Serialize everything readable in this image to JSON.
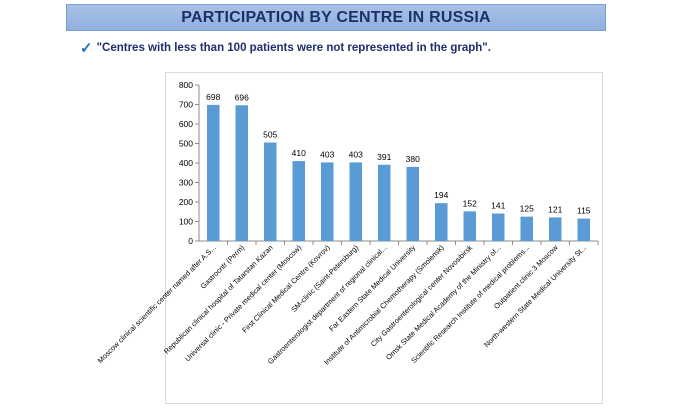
{
  "page": {
    "title": "PARTICIPATION BY CENTRE IN RUSSIA",
    "note": "\"Centres with less than 100 patients were not represented in the graph\".",
    "check_icon": "checkmark-icon"
  },
  "colors": {
    "bar": "#5b9bd5",
    "title_text": "#1f2f6b",
    "title_bg": "#9ab7e1"
  },
  "chart_data": {
    "type": "bar",
    "title": "",
    "xlabel": "",
    "ylabel": "",
    "ylim": [
      0,
      800
    ],
    "yticks": [
      "0",
      "100",
      "200",
      "300",
      "400",
      "500",
      "600",
      "700",
      "800"
    ],
    "grid": false,
    "legend": "none",
    "categories": [
      "Moscow clinical scientific center named after A.S...",
      "Gastrocntr (Perm)",
      "Republican clinical hospital of Tatarstan Kazan",
      "Universal clinic - Private medical center (Moscow)",
      "First Clinical Medical Centre (Kovrov)",
      "SM-clinic (Saint-Petersburg)",
      "Gastroenterologist department of regional clinical...",
      "Far Eastern State Medical University",
      "Institute of Antimicrobial Chemotherapy (Smolensk)",
      "City Gastroenterological center Novosibirsk",
      "Omsk State Medical Academy of the Ministry of...",
      "Scientific Research Institute of medical problems...",
      "Outpatient clinic 3 Moscow",
      "North-western State Medical University St..."
    ],
    "values": [
      698,
      696,
      505,
      410,
      403,
      403,
      391,
      380,
      194,
      152,
      141,
      125,
      121,
      115
    ],
    "data_labels": [
      "698",
      "696",
      "505",
      "410",
      "403",
      "403",
      "391",
      "380",
      "194",
      "152",
      "141",
      "125",
      "121",
      "115"
    ]
  }
}
